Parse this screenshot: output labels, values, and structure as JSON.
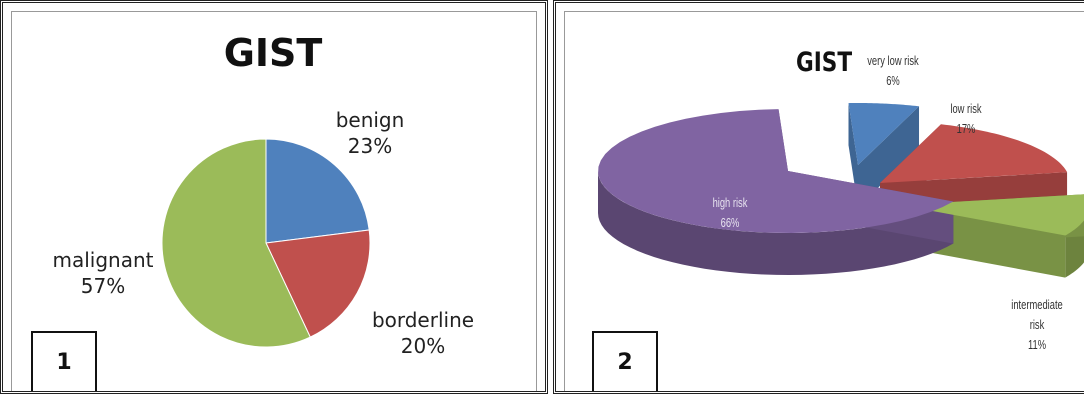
{
  "chart_data": [
    {
      "type": "pie",
      "title": "GIST",
      "panel_label": "1",
      "slices": [
        {
          "label": "benign",
          "value": 23,
          "value_text": "23%",
          "color": "#4f81bd"
        },
        {
          "label": "borderline",
          "value": 20,
          "value_text": "20%",
          "color": "#c0504d"
        },
        {
          "label": "malignant",
          "value": 57,
          "value_text": "57%",
          "color": "#9bbb59"
        }
      ],
      "start_angle_deg": 0,
      "direction": "clockwise",
      "legend": "none"
    },
    {
      "type": "pie",
      "style": "3d-exploded",
      "title": "GIST",
      "panel_label": "2",
      "slices": [
        {
          "label": "very low risk",
          "value": 6,
          "value_text": "6%",
          "color": "#4f81bd"
        },
        {
          "label": "low risk",
          "value": 17,
          "value_text": "17%",
          "color": "#c0504d"
        },
        {
          "label": "intermediate risk",
          "label_lines": [
            "intermediate",
            "risk"
          ],
          "value": 11,
          "value_text": "11%",
          "color": "#9bbb59"
        },
        {
          "label": "high risk",
          "value": 66,
          "value_text": "66%",
          "color": "#8064a2"
        }
      ],
      "legend": "none"
    }
  ]
}
